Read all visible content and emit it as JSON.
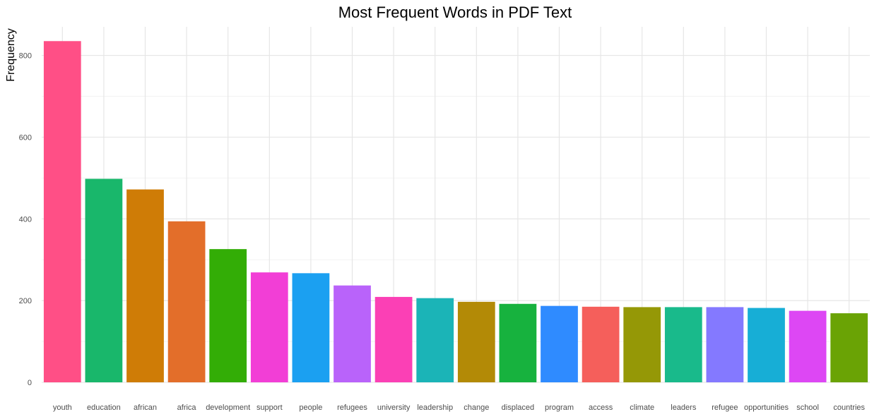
{
  "chart_data": {
    "type": "bar",
    "title": "Most Frequent Words in PDF Text",
    "xlabel": "",
    "ylabel": "Frequency",
    "ylim": [
      0,
      870
    ],
    "yticks": [
      0,
      200,
      400,
      600,
      800
    ],
    "grid": true,
    "legend": "none",
    "categories": [
      "youth",
      "education",
      "african",
      "africa",
      "development",
      "support",
      "people",
      "refugees",
      "university",
      "leadership",
      "change",
      "displaced",
      "program",
      "access",
      "climate",
      "leaders",
      "refugee",
      "opportunities",
      "school",
      "countries"
    ],
    "values": [
      835,
      498,
      472,
      394,
      326,
      269,
      267,
      237,
      209,
      206,
      197,
      192,
      187,
      185,
      184,
      184,
      184,
      182,
      175,
      169
    ],
    "colors": [
      "#FF4F86",
      "#19B76B",
      "#CF7C06",
      "#E36E2A",
      "#33AD06",
      "#F23ED6",
      "#1BA0F1",
      "#B963FA",
      "#FB40B5",
      "#1BB4B7",
      "#B38A06",
      "#17B23E",
      "#2F8BFF",
      "#F55F5B",
      "#959806",
      "#19BA8B",
      "#8479FF",
      "#17AED6",
      "#DD47F4",
      "#6AA305"
    ]
  }
}
